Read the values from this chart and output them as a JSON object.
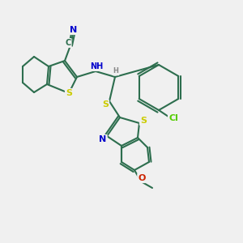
{
  "bg_color": "#f0f0f0",
  "bond_color": "#2d6e4e",
  "bond_width": 1.5,
  "atom_colors": {
    "N": "#0000cc",
    "S": "#cccc00",
    "Cl": "#55cc00",
    "C": "#2d6e4e",
    "H": "#888888",
    "O": "#cc2200"
  },
  "font_size": 8
}
